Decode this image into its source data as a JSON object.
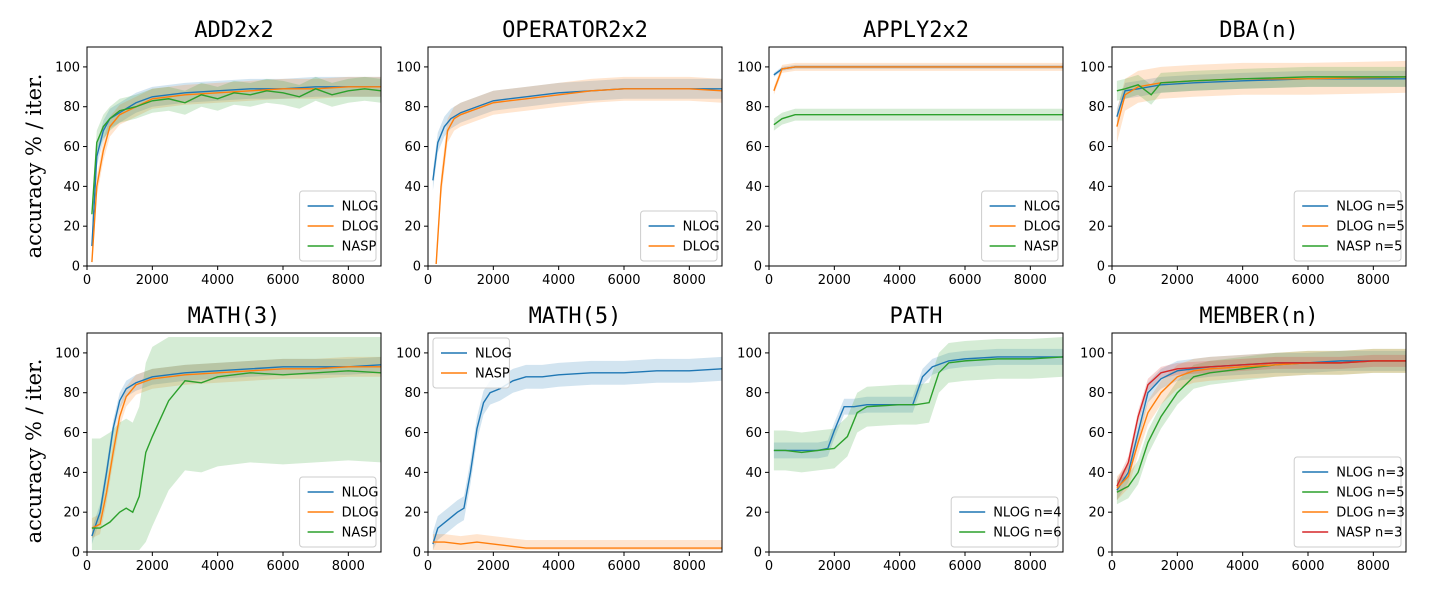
{
  "figure": {
    "ylabel": "accuracy % / iter.",
    "colors": {
      "NLOG": "#1f77b4",
      "DLOG": "#ff7f0e",
      "NASP": "#2ca02c",
      "RED": "#d62728"
    }
  },
  "chart_data": [
    {
      "type": "line",
      "title": "ADD2x2",
      "xlim": [
        0,
        9000
      ],
      "ylim": [
        0,
        110
      ],
      "xticks": [
        0,
        2000,
        4000,
        6000,
        8000
      ],
      "yticks": [
        0,
        20,
        40,
        60,
        80,
        100
      ],
      "legend": "lower right",
      "series": [
        {
          "name": "NLOG",
          "color": "#1f77b4",
          "x": [
            150,
            300,
            500,
            700,
            1000,
            1500,
            2000,
            3000,
            4000,
            5000,
            6000,
            7000,
            8000,
            9000
          ],
          "y": [
            10,
            55,
            68,
            74,
            77,
            82,
            85,
            87,
            88,
            89,
            89,
            90,
            90,
            90
          ],
          "band": 5
        },
        {
          "name": "DLOG",
          "color": "#ff7f0e",
          "x": [
            150,
            300,
            500,
            700,
            1000,
            1500,
            2000,
            3000,
            4000,
            5000,
            6000,
            7000,
            8000,
            9000
          ],
          "y": [
            2,
            40,
            58,
            70,
            76,
            80,
            84,
            86,
            87,
            88,
            89,
            89,
            90,
            90
          ],
          "band": 5
        },
        {
          "name": "NASP",
          "color": "#2ca02c",
          "x": [
            150,
            300,
            500,
            700,
            1000,
            1500,
            2000,
            2500,
            3000,
            3500,
            4000,
            4500,
            5000,
            5500,
            6000,
            6500,
            7000,
            7500,
            8000,
            8500,
            9000
          ],
          "y": [
            26,
            62,
            70,
            74,
            78,
            80,
            83,
            84,
            82,
            86,
            84,
            87,
            86,
            88,
            87,
            85,
            89,
            86,
            88,
            89,
            88
          ],
          "band": 6
        }
      ]
    },
    {
      "type": "line",
      "title": "OPERATOR2x2",
      "xlim": [
        0,
        9000
      ],
      "ylim": [
        0,
        110
      ],
      "xticks": [
        0,
        2000,
        4000,
        6000,
        8000
      ],
      "yticks": [
        0,
        20,
        40,
        60,
        80,
        100
      ],
      "legend": "lower right",
      "series": [
        {
          "name": "NLOG",
          "color": "#1f77b4",
          "x": [
            150,
            300,
            500,
            700,
            1000,
            1500,
            2000,
            3000,
            4000,
            5000,
            6000,
            7000,
            8000,
            9000
          ],
          "y": [
            43,
            62,
            70,
            74,
            77,
            80,
            83,
            85,
            87,
            88,
            89,
            89,
            89,
            89
          ],
          "band": 5
        },
        {
          "name": "DLOG",
          "color": "#ff7f0e",
          "x": [
            250,
            400,
            600,
            800,
            1000,
            1500,
            2000,
            3000,
            4000,
            5000,
            6000,
            7000,
            8000,
            9000
          ],
          "y": [
            1,
            40,
            68,
            74,
            76,
            79,
            82,
            84,
            86,
            88,
            89,
            89,
            89,
            88
          ],
          "band": 6
        }
      ]
    },
    {
      "type": "line",
      "title": "APPLY2x2",
      "xlim": [
        0,
        9000
      ],
      "ylim": [
        0,
        110
      ],
      "xticks": [
        0,
        2000,
        4000,
        6000,
        8000
      ],
      "yticks": [
        0,
        20,
        40,
        60,
        80,
        100
      ],
      "legend": "lower right",
      "series": [
        {
          "name": "NLOG",
          "color": "#1f77b4",
          "x": [
            150,
            400,
            800,
            9000
          ],
          "y": [
            96,
            99,
            100,
            100
          ],
          "band": 1
        },
        {
          "name": "DLOG",
          "color": "#ff7f0e",
          "x": [
            150,
            400,
            800,
            9000
          ],
          "y": [
            88,
            99,
            100,
            100
          ],
          "band": 2
        },
        {
          "name": "NASP",
          "color": "#2ca02c",
          "x": [
            150,
            400,
            800,
            9000
          ],
          "y": [
            71,
            74,
            76,
            76
          ],
          "band": 3
        }
      ]
    },
    {
      "type": "line",
      "title": "DBA(n)",
      "xlim": [
        0,
        9000
      ],
      "ylim": [
        0,
        110
      ],
      "xticks": [
        0,
        2000,
        4000,
        6000,
        8000
      ],
      "yticks": [
        0,
        20,
        40,
        60,
        80,
        100
      ],
      "legend": "lower right",
      "series": [
        {
          "name": "NLOG n=5",
          "color": "#1f77b4",
          "x": [
            150,
            400,
            800,
            1500,
            2500,
            4000,
            6000,
            9000
          ],
          "y": [
            75,
            88,
            89,
            91,
            92,
            93,
            94,
            94
          ],
          "band": 4
        },
        {
          "name": "DLOG n=5",
          "color": "#ff7f0e",
          "x": [
            150,
            400,
            800,
            1500,
            2500,
            4000,
            6000,
            9000
          ],
          "y": [
            70,
            86,
            90,
            92,
            93,
            94,
            94,
            95
          ],
          "band": 8
        },
        {
          "name": "NASP n=5",
          "color": "#2ca02c",
          "x": [
            150,
            400,
            800,
            1200,
            1500,
            2500,
            4000,
            6000,
            9000
          ],
          "y": [
            88,
            89,
            91,
            86,
            92,
            93,
            94,
            95,
            95
          ],
          "band": 5
        }
      ]
    },
    {
      "type": "line",
      "title": "MATH(3)",
      "xlim": [
        0,
        9000
      ],
      "ylim": [
        0,
        110
      ],
      "xticks": [
        0,
        2000,
        4000,
        6000,
        8000
      ],
      "yticks": [
        0,
        20,
        40,
        60,
        80,
        100
      ],
      "legend": "lower right",
      "series": [
        {
          "name": "NLOG",
          "color": "#1f77b4",
          "x": [
            150,
            400,
            600,
            800,
            1000,
            1200,
            1500,
            2000,
            3000,
            4000,
            5000,
            6000,
            7000,
            8000,
            9000
          ],
          "y": [
            8,
            20,
            40,
            62,
            76,
            82,
            85,
            88,
            90,
            91,
            92,
            93,
            93,
            93,
            94
          ],
          "band": 4
        },
        {
          "name": "DLOG",
          "color": "#ff7f0e",
          "x": [
            150,
            400,
            600,
            800,
            1000,
            1200,
            1500,
            2000,
            3000,
            4000,
            5000,
            6000,
            7000,
            8000,
            9000
          ],
          "y": [
            12,
            14,
            30,
            50,
            68,
            78,
            84,
            87,
            89,
            90,
            91,
            92,
            92,
            93,
            93
          ],
          "band": 5
        },
        {
          "name": "NASP",
          "color": "#2ca02c",
          "x": [
            150,
            400,
            700,
            1000,
            1200,
            1400,
            1600,
            1800,
            2000,
            2500,
            3000,
            3500,
            4000,
            5000,
            6000,
            7000,
            8000,
            9000
          ],
          "y": [
            12,
            12,
            15,
            20,
            22,
            20,
            28,
            50,
            58,
            76,
            86,
            85,
            88,
            90,
            89,
            90,
            91,
            90
          ],
          "band": 45
        }
      ]
    },
    {
      "type": "line",
      "title": "MATH(5)",
      "xlim": [
        0,
        9000
      ],
      "ylim": [
        0,
        110
      ],
      "xticks": [
        0,
        2000,
        4000,
        6000,
        8000
      ],
      "yticks": [
        0,
        20,
        40,
        60,
        80,
        100
      ],
      "legend": "upper left",
      "series": [
        {
          "name": "NLOG",
          "color": "#1f77b4",
          "x": [
            150,
            300,
            600,
            900,
            1100,
            1300,
            1500,
            1700,
            1900,
            2200,
            2600,
            3000,
            3500,
            4000,
            5000,
            6000,
            7000,
            8000,
            9000
          ],
          "y": [
            4,
            12,
            16,
            20,
            22,
            40,
            62,
            75,
            80,
            82,
            86,
            88,
            88,
            89,
            90,
            90,
            91,
            91,
            92
          ],
          "band": 6
        },
        {
          "name": "NASP",
          "color": "#ff7f0e",
          "x": [
            150,
            500,
            1000,
            1500,
            2000,
            2500,
            3000,
            4000,
            5000,
            6000,
            7000,
            8000,
            9000
          ],
          "y": [
            5,
            5,
            4,
            5,
            4,
            3,
            2,
            2,
            2,
            2,
            2,
            2,
            2
          ],
          "band": 4
        }
      ]
    },
    {
      "type": "line",
      "title": "PATH",
      "xlim": [
        0,
        9000
      ],
      "ylim": [
        0,
        110
      ],
      "xticks": [
        0,
        2000,
        4000,
        6000,
        8000
      ],
      "yticks": [
        0,
        20,
        40,
        60,
        80,
        100
      ],
      "legend": "lower right",
      "series": [
        {
          "name": "NLOG n=4",
          "color": "#1f77b4",
          "x": [
            150,
            500,
            1000,
            1500,
            1800,
            2000,
            2300,
            2600,
            3000,
            4000,
            4400,
            4700,
            5000,
            5500,
            6000,
            7000,
            8000,
            9000
          ],
          "y": [
            51,
            51,
            51,
            51,
            52,
            61,
            73,
            73,
            74,
            74,
            74,
            88,
            93,
            96,
            97,
            98,
            98,
            98
          ],
          "band": 4
        },
        {
          "name": "NLOG n=6",
          "color": "#2ca02c",
          "x": [
            150,
            500,
            1000,
            1500,
            2000,
            2400,
            2700,
            3000,
            4000,
            4500,
            4900,
            5200,
            5500,
            6000,
            7000,
            8000,
            9000
          ],
          "y": [
            51,
            51,
            50,
            51,
            52,
            58,
            70,
            73,
            74,
            74,
            75,
            90,
            95,
            96,
            97,
            97,
            98
          ],
          "band": 10
        }
      ]
    },
    {
      "type": "line",
      "title": "MEMBER(n)",
      "xlim": [
        0,
        9000
      ],
      "ylim": [
        0,
        110
      ],
      "xticks": [
        0,
        2000,
        4000,
        6000,
        8000
      ],
      "yticks": [
        0,
        20,
        40,
        60,
        80,
        100
      ],
      "legend": "lower right",
      "series": [
        {
          "name": "NLOG n=3",
          "color": "#1f77b4",
          "x": [
            150,
            500,
            800,
            1100,
            1500,
            2000,
            3000,
            4000,
            5000,
            6000,
            7000,
            8000,
            9000
          ],
          "y": [
            31,
            40,
            60,
            80,
            87,
            91,
            93,
            94,
            95,
            95,
            96,
            96,
            96
          ],
          "band": 5
        },
        {
          "name": "NLOG n=5",
          "color": "#2ca02c",
          "x": [
            150,
            500,
            800,
            1100,
            1500,
            2000,
            2500,
            3000,
            4000,
            5000,
            6000,
            7000,
            8000,
            9000
          ],
          "y": [
            30,
            33,
            40,
            55,
            68,
            80,
            88,
            90,
            92,
            94,
            95,
            95,
            96,
            96
          ],
          "band": 6
        },
        {
          "name": "DLOG n=3",
          "color": "#ff7f0e",
          "x": [
            150,
            500,
            800,
            1100,
            1500,
            2000,
            2500,
            3000,
            4000,
            5000,
            6000,
            7000,
            8000,
            9000
          ],
          "y": [
            32,
            38,
            55,
            70,
            80,
            88,
            91,
            92,
            93,
            94,
            95,
            95,
            96,
            96
          ],
          "band": 6
        },
        {
          "name": "NASP n=3",
          "color": "#d62728",
          "x": [
            150,
            500,
            800,
            1100,
            1500,
            2000,
            3000,
            4000,
            5000,
            6000,
            7000,
            8000,
            9000
          ],
          "y": [
            33,
            45,
            68,
            84,
            90,
            92,
            93,
            94,
            95,
            95,
            95,
            96,
            96
          ],
          "band": 3
        }
      ]
    }
  ]
}
